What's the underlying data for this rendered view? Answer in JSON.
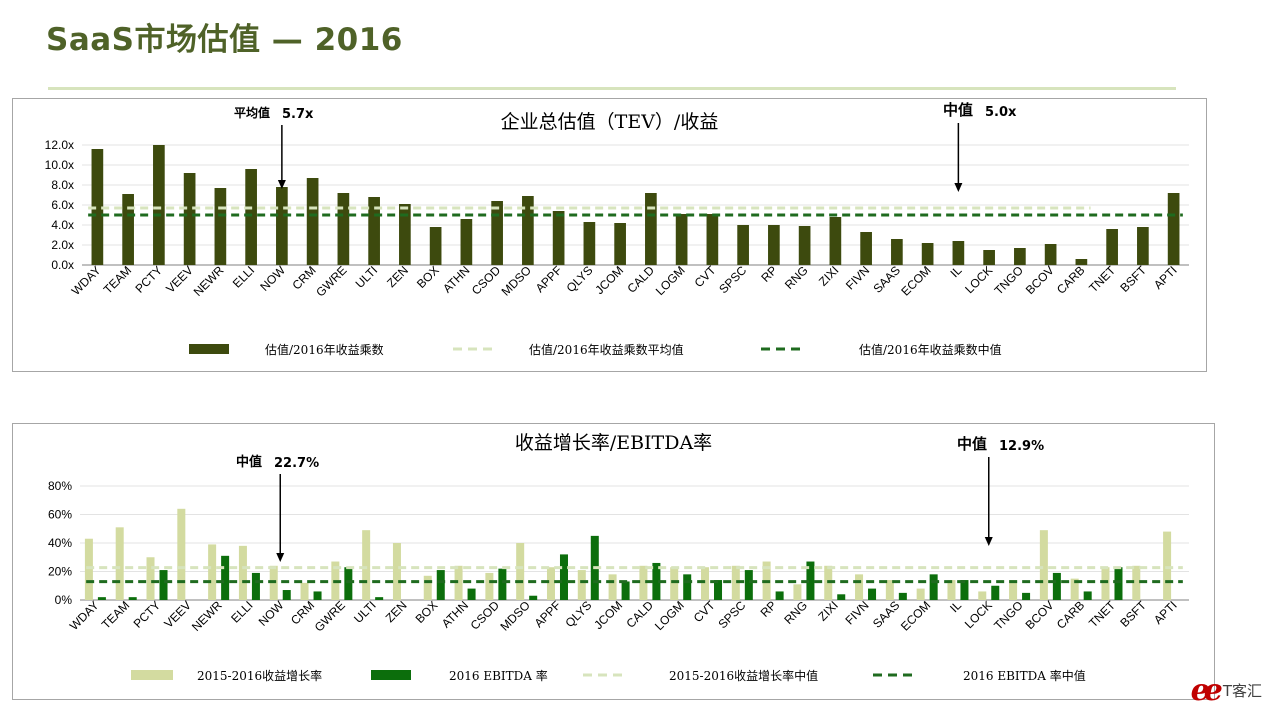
{
  "page": {
    "title": "SaaS市场估值 — 2016"
  },
  "watermark": {
    "logo": "ee",
    "text": "T客汇"
  },
  "chart_data": [
    {
      "type": "bar",
      "title": "企业总估值（TEV）/收益",
      "categories": [
        "WDAY",
        "TEAM",
        "PCTY",
        "VEEV",
        "NEWR",
        "ELLI",
        "NOW",
        "CRM",
        "GWRE",
        "ULTI",
        "ZEN",
        "BOX",
        "ATHN",
        "CSOD",
        "MDSO",
        "APPF",
        "QLYS",
        "JCOM",
        "CALD",
        "LOGM",
        "CVT",
        "SPSC",
        "RP",
        "RNG",
        "ZIXI",
        "FIVN",
        "SAAS",
        "ECOM",
        "IL",
        "LOCK",
        "TNGO",
        "BCOV",
        "CARB",
        "TNET",
        "BSFT",
        "APTI"
      ],
      "series": [
        {
          "name": "估值/2016年收益乘数",
          "kind": "bar",
          "color": "#3d4a0e",
          "values": [
            11.6,
            7.1,
            12.0,
            9.2,
            7.7,
            9.6,
            7.8,
            8.7,
            7.2,
            6.8,
            6.1,
            3.8,
            4.6,
            6.4,
            6.9,
            5.4,
            4.3,
            4.2,
            7.2,
            5.1,
            5.1,
            4.0,
            4.0,
            3.9,
            4.8,
            3.3,
            2.6,
            2.2,
            2.4,
            1.5,
            1.7,
            2.1,
            0.6,
            3.6,
            3.8,
            7.2
          ]
        },
        {
          "name": "估值/2016年收益乘数平均值",
          "kind": "refline",
          "color": "#d7e4bd",
          "value": 5.7
        },
        {
          "name": "估值/2016年收益乘数中值",
          "kind": "refline",
          "color": "#1f6b1f",
          "value": 5.0
        }
      ],
      "ylim": [
        0,
        12
      ],
      "yticks": [
        "0.0x",
        "2.0x",
        "4.0x",
        "6.0x",
        "8.0x",
        "10.0x",
        "12.0x"
      ],
      "annotations": [
        {
          "label": "平均值",
          "value": "5.7x",
          "category": "NOW"
        },
        {
          "label": "中值",
          "value": "5.0x",
          "category": "IL"
        }
      ]
    },
    {
      "type": "bar",
      "title": "收益增长率/EBITDA率",
      "categories": [
        "WDAY",
        "TEAM",
        "PCTY",
        "VEEV",
        "NEWR",
        "ELLI",
        "NOW",
        "CRM",
        "GWRE",
        "ULTI",
        "ZEN",
        "BOX",
        "ATHN",
        "CSOD",
        "MDSO",
        "APPF",
        "QLYS",
        "JCOM",
        "CALD",
        "LOGM",
        "CVT",
        "SPSC",
        "RP",
        "RNG",
        "ZIXI",
        "FIVN",
        "SAAS",
        "ECOM",
        "IL",
        "LOCK",
        "TNGO",
        "BCOV",
        "CARB",
        "TNET",
        "BSFT",
        "APTI"
      ],
      "series": [
        {
          "name": "2015-2016收益增长率",
          "kind": "bar",
          "color": "#d3dba0",
          "values": [
            43,
            51,
            30,
            64,
            39,
            38,
            24,
            12,
            27,
            49,
            40,
            17,
            24,
            19,
            40,
            23,
            21,
            18,
            24,
            23,
            23,
            24,
            27,
            11,
            24,
            18,
            14,
            8,
            14,
            6,
            14,
            49,
            15,
            23,
            24,
            48
          ]
        },
        {
          "name": "2016 EBITDA 率",
          "kind": "bar",
          "color": "#0c6e0c",
          "values": [
            2,
            2,
            21,
            0,
            31,
            19,
            7,
            6,
            23,
            2,
            0,
            21,
            8,
            22,
            3,
            32,
            45,
            13,
            26,
            18,
            14,
            21,
            6,
            27,
            4,
            8,
            5,
            18,
            14,
            10,
            5,
            19,
            6,
            23,
            0,
            0
          ]
        },
        {
          "name": "2015-2016收益增长率中值",
          "kind": "refline",
          "color": "#d7e4bd",
          "value": 22.7
        },
        {
          "name": "2016 EBITDA 率中值",
          "kind": "refline",
          "color": "#1f6b1f",
          "value": 12.9
        }
      ],
      "ylim": [
        0,
        80
      ],
      "yticks": [
        "0%",
        "20%",
        "40%",
        "60%",
        "80%"
      ],
      "annotations": [
        {
          "label": "中值",
          "value": "22.7%",
          "category": "NOW"
        },
        {
          "label": "中值",
          "value": "12.9%",
          "category": "LOCK"
        }
      ]
    }
  ]
}
